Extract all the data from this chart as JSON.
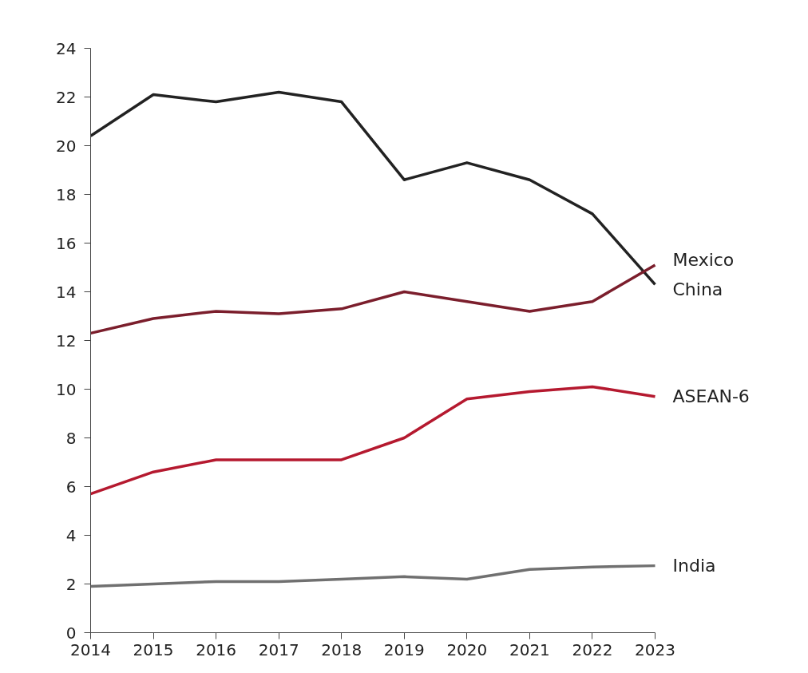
{
  "chart_data": {
    "type": "line",
    "x": [
      2014,
      2015,
      2016,
      2017,
      2018,
      2019,
      2020,
      2021,
      2022,
      2023
    ],
    "xlim": [
      2014,
      2023
    ],
    "xticks": [
      2014,
      2015,
      2016,
      2017,
      2018,
      2019,
      2020,
      2021,
      2022,
      2023
    ],
    "ylim": [
      0,
      24
    ],
    "yticks": [
      0,
      2,
      4,
      6,
      8,
      10,
      12,
      14,
      16,
      18,
      20,
      22,
      24
    ],
    "grid": false,
    "marker": "none",
    "line_style": "solid",
    "series": [
      {
        "name": "China",
        "color": "#222222",
        "values": [
          20.4,
          22.1,
          21.8,
          22.2,
          21.8,
          18.6,
          19.3,
          18.6,
          17.2,
          14.3
        ]
      },
      {
        "name": "Mexico",
        "color": "#7b1e2c",
        "values": [
          12.3,
          12.9,
          13.2,
          13.1,
          13.3,
          14.0,
          13.6,
          13.2,
          13.6,
          15.1
        ]
      },
      {
        "name": "ASEAN-6",
        "color": "#b5192f",
        "values": [
          5.7,
          6.6,
          7.1,
          7.1,
          7.1,
          8.0,
          9.6,
          9.9,
          10.1,
          9.7
        ]
      },
      {
        "name": "India",
        "color": "#707070",
        "values": [
          1.9,
          2.0,
          2.1,
          2.1,
          2.2,
          2.3,
          2.2,
          2.6,
          2.7,
          2.75
        ]
      }
    ]
  }
}
